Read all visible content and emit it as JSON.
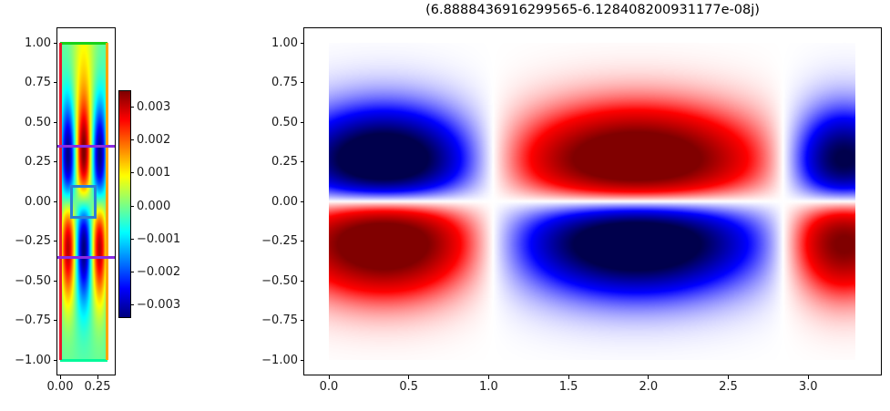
{
  "figure": {
    "background": "#ffffff",
    "kind": "matplotlib-double-heatmap"
  },
  "left_plot": {
    "xtick_labels": [
      "0.00",
      "0.25"
    ],
    "ytick_labels": [
      "1.00",
      "0.75",
      "0.50",
      "0.25",
      "0.00",
      "−0.25",
      "−0.50",
      "−0.75",
      "−1.00"
    ],
    "colormap": "jet"
  },
  "colorbar": {
    "tick_labels": [
      "0.003",
      "0.002",
      "0.001",
      "0.000",
      "−0.001",
      "−0.002",
      "−0.003"
    ],
    "colormap": "jet",
    "vmin": -0.0035,
    "vmax": 0.0035
  },
  "right_plot": {
    "title": "(6.8888436916299565-6.128408200931177e-08j)",
    "xtick_labels": [
      "0.0",
      "0.5",
      "1.0",
      "1.5",
      "2.0",
      "2.5",
      "3.0"
    ],
    "ytick_labels": [
      "1.00",
      "0.75",
      "0.50",
      "0.25",
      "0.00",
      "−0.25",
      "−0.50",
      "−0.75",
      "−1.00"
    ],
    "colormap": "seismic"
  },
  "chart_data": [
    {
      "type": "heatmap",
      "name": "left-strip-field",
      "colormap": "jet",
      "x_range": [
        0,
        0.32
      ],
      "y_range": [
        -1,
        1
      ],
      "clim": [
        -0.0035,
        0.0035
      ],
      "colorbar_tick_values": [
        0.003,
        0.002,
        0.001,
        0.0,
        -0.001,
        -0.002,
        -0.003
      ],
      "model": {
        "background_level": -0.06,
        "mode_amplitude": 0.95,
        "y_profile_peak": 0.3,
        "x_cosine_center": 0.16,
        "x_cosine_half_period": 0.107,
        "top_column": {
          "amplitude": 0.3,
          "x_center": 0.16,
          "x_sigma": 0.055,
          "y_center": 0.82,
          "y_sigma": 0.38
        }
      },
      "pattern_summary": "Green background strip; red lobe at center y=+0.3 flanked by blue stripes; blue lobe at center y=-0.35 flanked by red edge stripes; yellow column near top center",
      "annotations": [
        {
          "kind": "hline",
          "y": 1.0,
          "color": "#19d219",
          "extent": "data"
        },
        {
          "kind": "hline",
          "y": -1.0,
          "color": "#00fa9a",
          "extent": "data"
        },
        {
          "kind": "vline",
          "x": 0.005,
          "color": "#e9182f",
          "extent": "data"
        },
        {
          "kind": "vline",
          "x": 0.315,
          "color": "#ffa500",
          "extent": "data"
        },
        {
          "kind": "hline",
          "y": 0.345,
          "color": "#8a2be2",
          "extent": "axes"
        },
        {
          "kind": "hline",
          "y": -0.352,
          "color": "#8a2be2",
          "extent": "axes"
        },
        {
          "kind": "rect",
          "x0": 0.07,
          "x1": 0.245,
          "y0": -0.108,
          "y1": 0.102,
          "color": "#2b7fd6"
        }
      ]
    },
    {
      "type": "heatmap",
      "name": "mode-field-real-part",
      "title": "(6.8888436916299565-6.128408200931177e-08j)",
      "colormap": "seismic",
      "x_range": [
        0,
        3.3
      ],
      "y_range": [
        -1,
        1
      ],
      "clim": [
        -1,
        1
      ],
      "y_profile_peak": 0.27,
      "x_lobes": [
        {
          "center": 0.35,
          "sigma": 0.38,
          "amplitude": -1.35
        },
        {
          "center": 1.93,
          "sigma": 0.5,
          "amplitude": 1.38
        },
        {
          "center": 3.22,
          "sigma": 0.22,
          "amplitude": -1.08
        }
      ],
      "x_nodes": [
        1.06,
        2.8
      ],
      "pattern_summary": "Six lobes: blue/red/blue across top row at y=+0.25, red/blue/red across bottom row at y=-0.27, sharp white nodal line along y=0, white vertical nodes at x=1.06 and x=2.80"
    }
  ]
}
